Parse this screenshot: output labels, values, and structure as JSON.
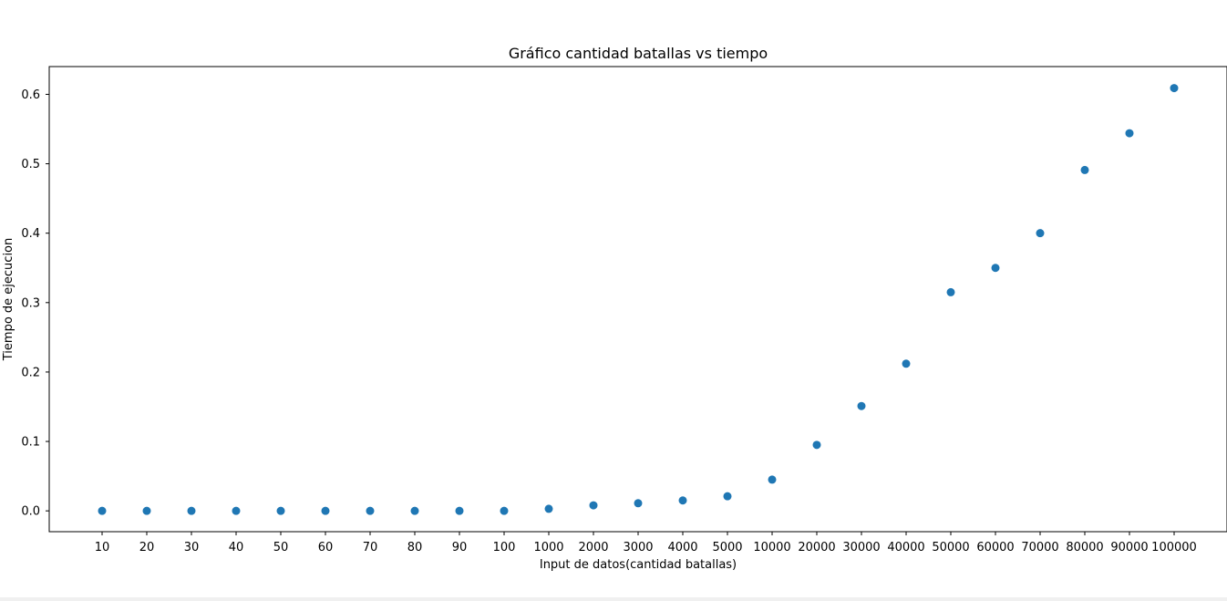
{
  "chart_data": {
    "type": "scatter",
    "title": "Gráfico cantidad batallas vs tiempo",
    "xlabel": "Input de datos(cantidad batallas)",
    "ylabel": "Tiempo de ejecucion",
    "categories": [
      "10",
      "20",
      "30",
      "40",
      "50",
      "60",
      "70",
      "80",
      "90",
      "100",
      "1000",
      "2000",
      "3000",
      "4000",
      "5000",
      "10000",
      "20000",
      "30000",
      "40000",
      "50000",
      "60000",
      "70000",
      "80000",
      "90000",
      "100000"
    ],
    "values": [
      0.0,
      0.0,
      0.0,
      0.0,
      0.0,
      0.0,
      0.0,
      0.0,
      0.0,
      0.0,
      0.003,
      0.008,
      0.011,
      0.015,
      0.021,
      0.045,
      0.095,
      0.151,
      0.212,
      0.315,
      0.35,
      0.4,
      0.491,
      0.544,
      0.609
    ],
    "yticks": [
      "0.0",
      "0.1",
      "0.2",
      "0.3",
      "0.4",
      "0.5",
      "0.6"
    ],
    "ylim": [
      -0.03,
      0.64
    ],
    "grid": false,
    "marker_color": "#1f77b4"
  }
}
